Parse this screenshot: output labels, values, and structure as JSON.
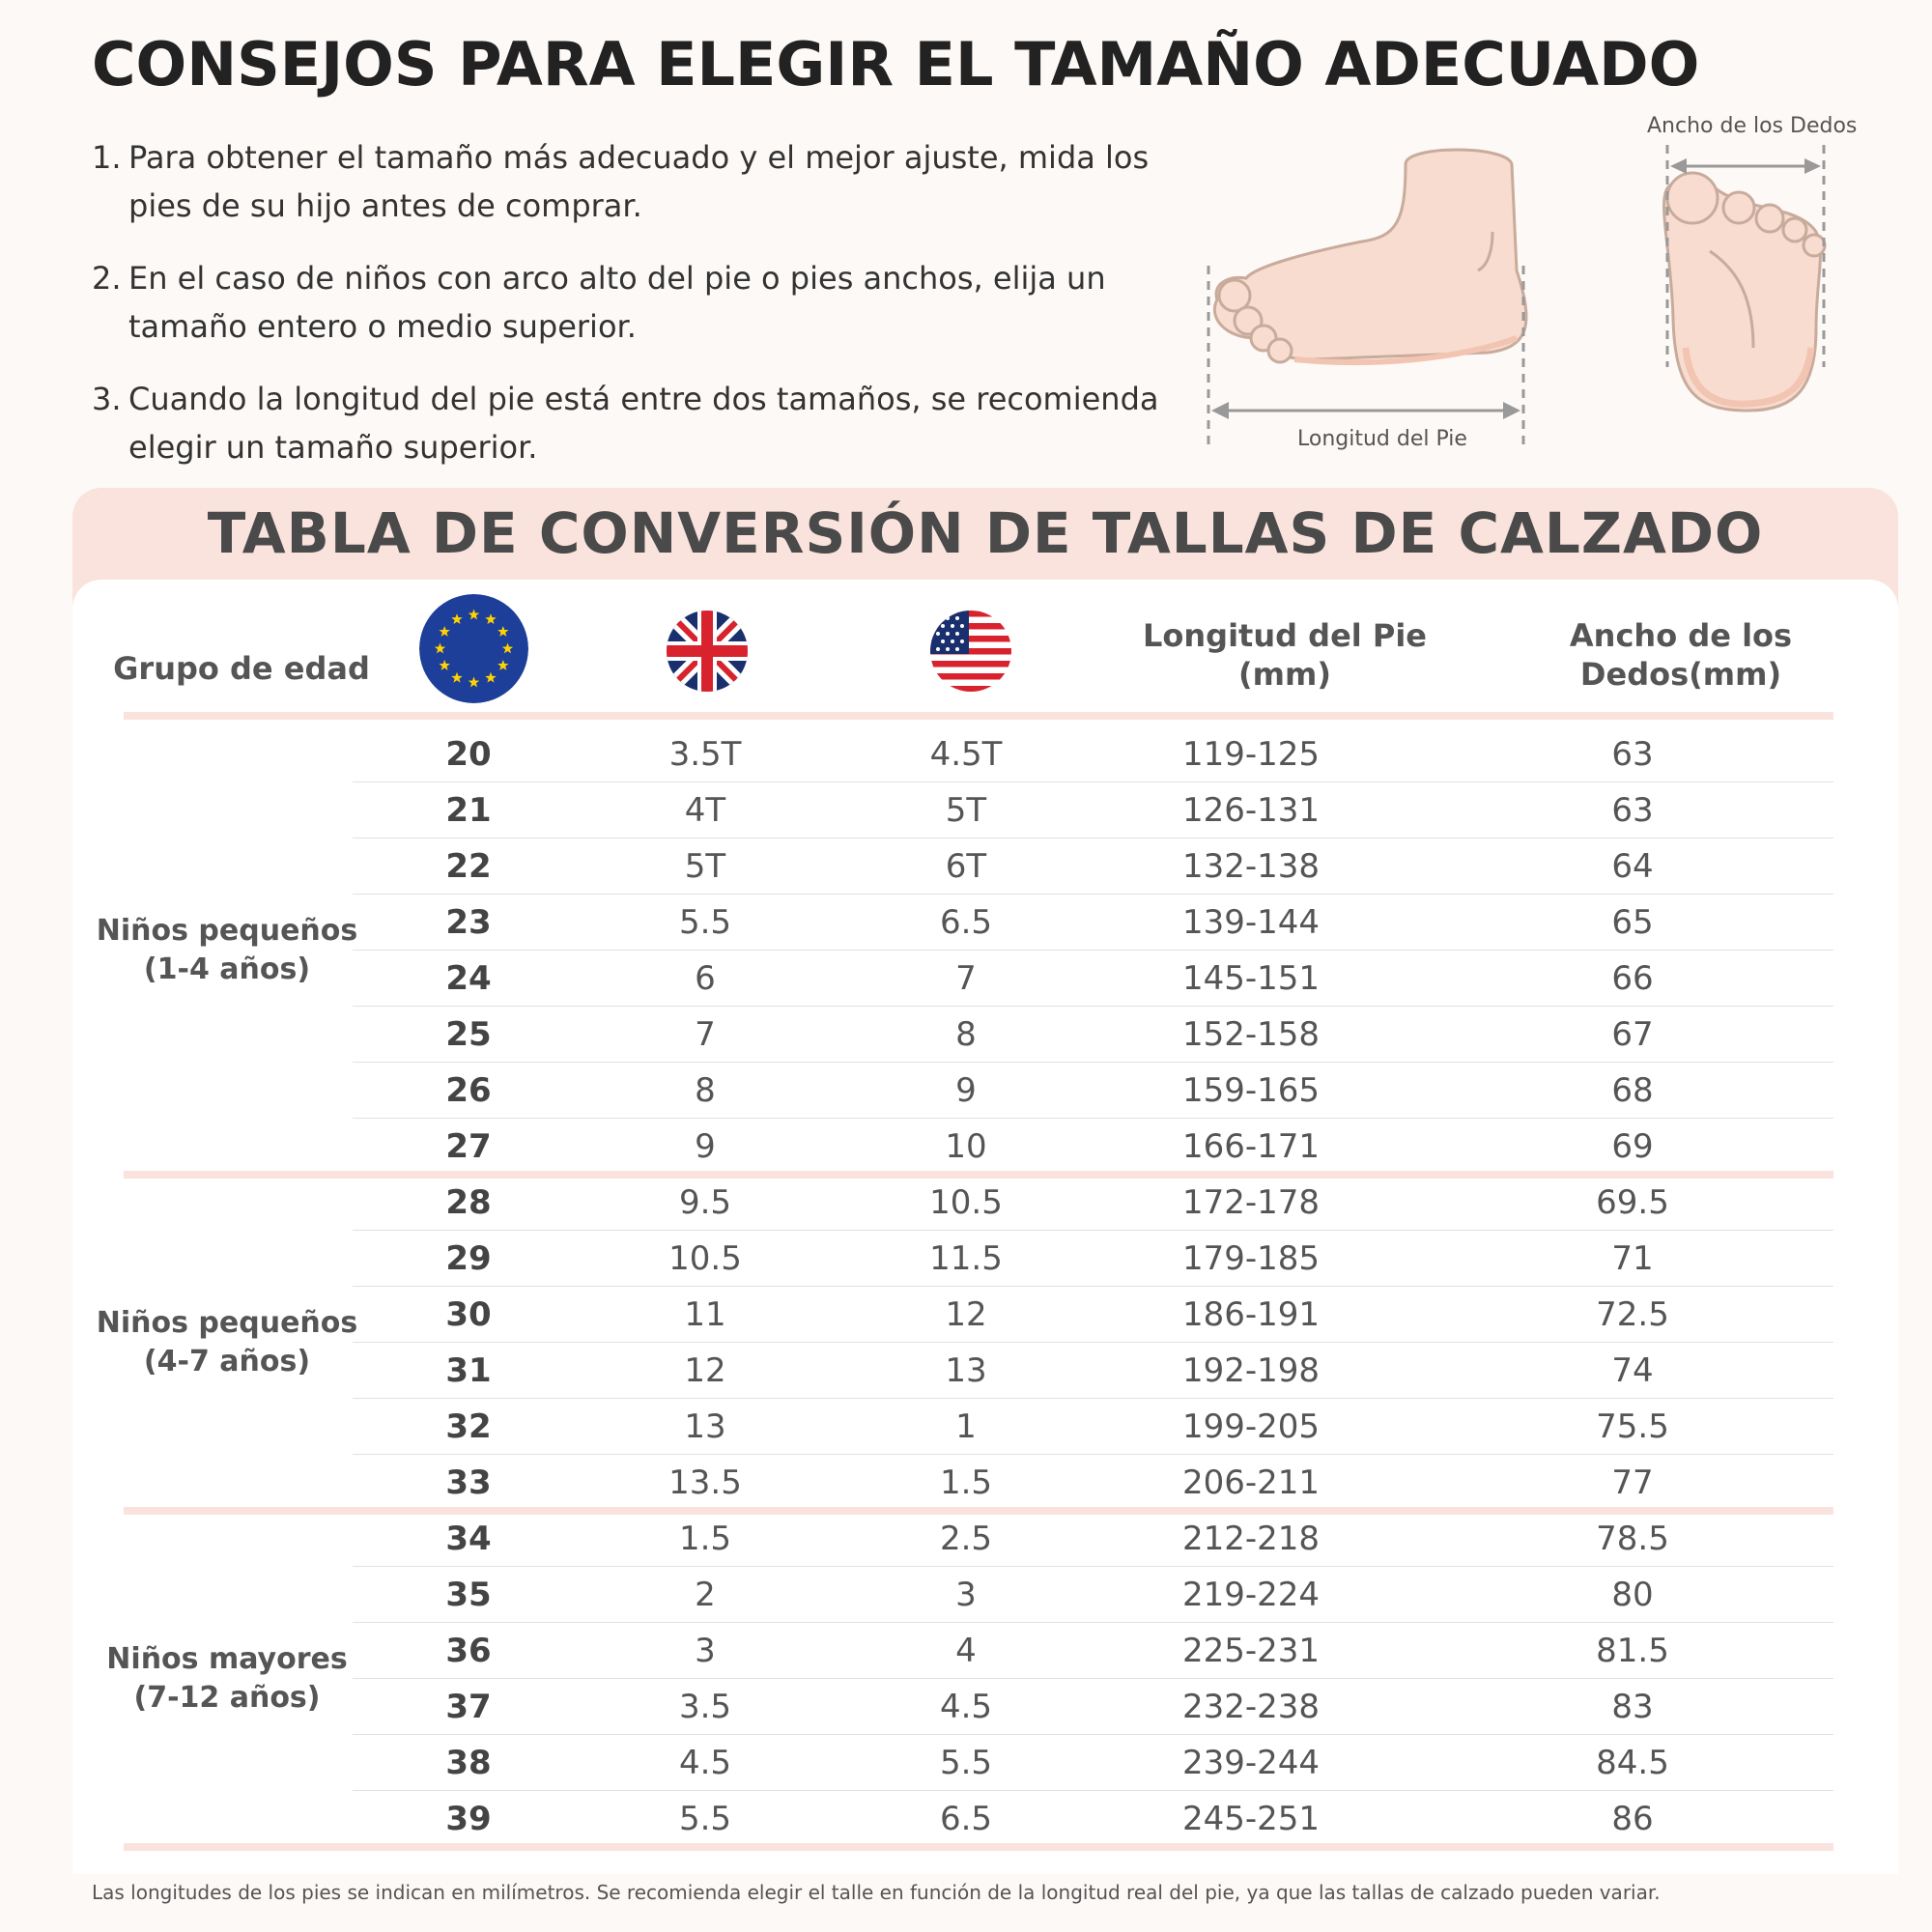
{
  "header": {
    "title": "CONSEJOS PARA ELEGIR EL TAMAÑO ADECUADO",
    "tips": [
      {
        "num": "1.",
        "text": "Para obtener el tamaño más adecuado y el mejor ajuste, mida los pies de su hijo antes de comprar."
      },
      {
        "num": "2.",
        "text": "En el caso de niños con arco alto del pie o pies anchos, elija un tamaño entero o medio superior."
      },
      {
        "num": "3.",
        "text": "Cuando la longitud del pie está entre dos tamaños, se recomienda elegir un tamaño superior."
      }
    ]
  },
  "illustration": {
    "foot_length_label": "Longitud del Pie",
    "toe_width_label": "Ancho de los Dedos"
  },
  "table": {
    "title": "TABLA DE CONVERSIÓN DE TALLAS DE CALZADO",
    "headers": {
      "age_group": "Grupo de edad",
      "eu_flag": "eu-flag-icon",
      "uk_flag": "uk-flag-icon",
      "us_flag": "us-flag-icon",
      "foot_length_line1": "Longitud del Pie",
      "foot_length_line2": "(mm)",
      "toe_width_line1": "Ancho de los",
      "toe_width_line2": "Dedos(mm)"
    },
    "groups": [
      {
        "label_line1": "Niños pequeños",
        "label_line2": "(1-4 años)",
        "rows": [
          {
            "eu": "20",
            "uk": "3.5T",
            "us": "4.5T",
            "length": "119-125",
            "width": "63"
          },
          {
            "eu": "21",
            "uk": "4T",
            "us": "5T",
            "length": "126-131",
            "width": "63"
          },
          {
            "eu": "22",
            "uk": "5T",
            "us": "6T",
            "length": "132-138",
            "width": "64"
          },
          {
            "eu": "23",
            "uk": "5.5",
            "us": "6.5",
            "length": "139-144",
            "width": "65"
          },
          {
            "eu": "24",
            "uk": "6",
            "us": "7",
            "length": "145-151",
            "width": "66"
          },
          {
            "eu": "25",
            "uk": "7",
            "us": "8",
            "length": "152-158",
            "width": "67"
          },
          {
            "eu": "26",
            "uk": "8",
            "us": "9",
            "length": "159-165",
            "width": "68"
          },
          {
            "eu": "27",
            "uk": "9",
            "us": "10",
            "length": "166-171",
            "width": "69"
          }
        ]
      },
      {
        "label_line1": "Niños pequeños",
        "label_line2": "(4-7 años)",
        "rows": [
          {
            "eu": "28",
            "uk": "9.5",
            "us": "10.5",
            "length": "172-178",
            "width": "69.5"
          },
          {
            "eu": "29",
            "uk": "10.5",
            "us": "11.5",
            "length": "179-185",
            "width": "71"
          },
          {
            "eu": "30",
            "uk": "11",
            "us": "12",
            "length": "186-191",
            "width": "72.5"
          },
          {
            "eu": "31",
            "uk": "12",
            "us": "13",
            "length": "192-198",
            "width": "74"
          },
          {
            "eu": "32",
            "uk": "13",
            "us": "1",
            "length": "199-205",
            "width": "75.5"
          },
          {
            "eu": "33",
            "uk": "13.5",
            "us": "1.5",
            "length": "206-211",
            "width": "77"
          }
        ]
      },
      {
        "label_line1": "Niños mayores",
        "label_line2": "(7-12 años)",
        "rows": [
          {
            "eu": "34",
            "uk": "1.5",
            "us": "2.5",
            "length": "212-218",
            "width": "78.5"
          },
          {
            "eu": "35",
            "uk": "2",
            "us": "3",
            "length": "219-224",
            "width": "80"
          },
          {
            "eu": "36",
            "uk": "3",
            "us": "4",
            "length": "225-231",
            "width": "81.5"
          },
          {
            "eu": "37",
            "uk": "3.5",
            "us": "4.5",
            "length": "232-238",
            "width": "83"
          },
          {
            "eu": "38",
            "uk": "4.5",
            "us": "5.5",
            "length": "239-244",
            "width": "84.5"
          },
          {
            "eu": "39",
            "uk": "5.5",
            "us": "6.5",
            "length": "245-251",
            "width": "86"
          }
        ]
      }
    ]
  },
  "footnote": "Las longitudes de los pies se indican en milímetros. Se recomienda elegir el talle en función de la longitud real del pie, ya que las tallas de calzado pueden variar.",
  "colors": {
    "accent_band": "#f9e3dc",
    "skin": "#f7dccf",
    "eu_blue": "#1d3f9a",
    "eu_star": "#ffd200",
    "uk_blue": "#1a2f6e",
    "red": "#d8222e"
  }
}
